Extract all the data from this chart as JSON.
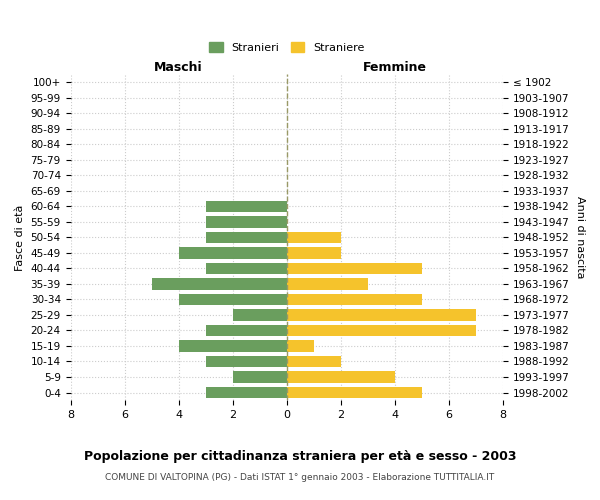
{
  "age_groups": [
    "100+",
    "95-99",
    "90-94",
    "85-89",
    "80-84",
    "75-79",
    "70-74",
    "65-69",
    "60-64",
    "55-59",
    "50-54",
    "45-49",
    "40-44",
    "35-39",
    "30-34",
    "25-29",
    "20-24",
    "15-19",
    "10-14",
    "5-9",
    "0-4"
  ],
  "birth_years": [
    "≤ 1902",
    "1903-1907",
    "1908-1912",
    "1913-1917",
    "1918-1922",
    "1923-1927",
    "1928-1932",
    "1933-1937",
    "1938-1942",
    "1943-1947",
    "1948-1952",
    "1953-1957",
    "1958-1962",
    "1963-1967",
    "1968-1972",
    "1973-1977",
    "1978-1982",
    "1983-1987",
    "1988-1992",
    "1993-1997",
    "1998-2002"
  ],
  "males": [
    0,
    0,
    0,
    0,
    0,
    0,
    0,
    0,
    3,
    3,
    3,
    4,
    3,
    5,
    4,
    2,
    3,
    4,
    3,
    2,
    3
  ],
  "females": [
    0,
    0,
    0,
    0,
    0,
    0,
    0,
    0,
    0,
    0,
    2,
    2,
    5,
    3,
    5,
    7,
    7,
    1,
    2,
    4,
    5
  ],
  "male_color": "#6a9e5e",
  "female_color": "#f5c32c",
  "title": "Popolazione per cittadinanza straniera per età e sesso - 2003",
  "subtitle": "COMUNE DI VALTOPINA (PG) - Dati ISTAT 1° gennaio 2003 - Elaborazione TUTTITALIA.IT",
  "xlabel_left": "Maschi",
  "xlabel_right": "Femmine",
  "ylabel_left": "Fasce di età",
  "ylabel_right": "Anni di nascita",
  "legend_male": "Stranieri",
  "legend_female": "Straniere",
  "xlim": 8,
  "background_color": "#ffffff",
  "grid_color": "#cccccc"
}
